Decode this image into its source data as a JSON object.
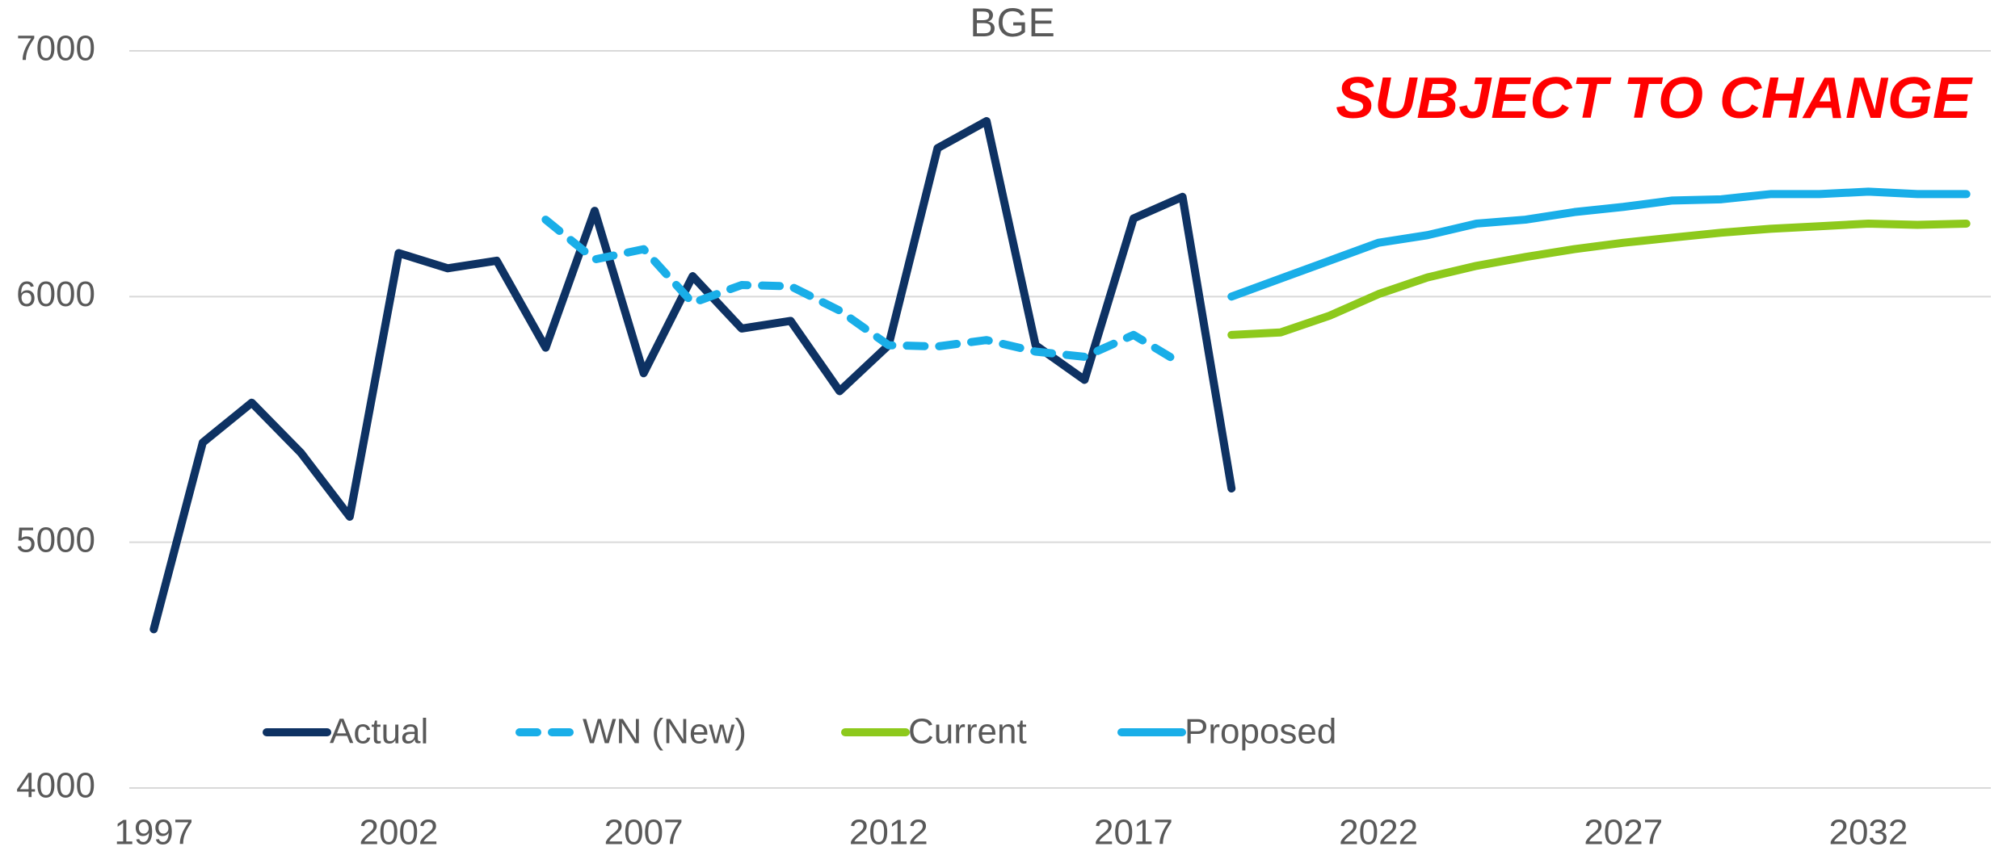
{
  "chart_data": {
    "type": "line",
    "title": "BGE",
    "annotation": "SUBJECT TO CHANGE",
    "annotation_color": "#ff0000",
    "x": [
      1997,
      1998,
      1999,
      2000,
      2001,
      2002,
      2003,
      2004,
      2005,
      2006,
      2007,
      2008,
      2009,
      2010,
      2011,
      2012,
      2013,
      2014,
      2015,
      2016,
      2017,
      2018,
      2019,
      2020,
      2021,
      2022,
      2023,
      2024,
      2025,
      2026,
      2027,
      2028,
      2029,
      2030,
      2031,
      2032,
      2033,
      2034
    ],
    "series": [
      {
        "name": "Actual",
        "color": "#0e3263",
        "dashed": false,
        "values": [
          4646,
          5406,
          5568,
          5365,
          5104,
          6177,
          6115,
          6146,
          5792,
          6349,
          5688,
          6083,
          5870,
          5901,
          5615,
          5802,
          6604,
          6714,
          5802,
          5661,
          6318,
          6406,
          5219,
          null,
          null,
          null,
          null,
          null,
          null,
          null,
          null,
          null,
          null,
          null,
          null,
          null,
          null,
          null
        ]
      },
      {
        "name": "WN (New)",
        "color": "#19aee8",
        "dashed": true,
        "values": [
          null,
          null,
          null,
          null,
          null,
          null,
          null,
          null,
          6313,
          6151,
          6193,
          5974,
          6047,
          6042,
          5943,
          5802,
          5797,
          5823,
          5776,
          5755,
          5844,
          5724,
          null,
          null,
          null,
          null,
          null,
          null,
          null,
          null,
          null,
          null,
          null,
          null,
          null,
          null,
          null,
          null
        ]
      },
      {
        "name": "Current",
        "color": "#8dc91c",
        "dashed": false,
        "values": [
          null,
          null,
          null,
          null,
          null,
          null,
          null,
          null,
          null,
          null,
          null,
          null,
          null,
          null,
          null,
          null,
          null,
          null,
          null,
          null,
          null,
          null,
          5844,
          5854,
          5922,
          6010,
          6078,
          6125,
          6161,
          6193,
          6219,
          6240,
          6260,
          6276,
          6286,
          6297,
          6292,
          6297
        ]
      },
      {
        "name": "Proposed",
        "color": "#19aee8",
        "dashed": false,
        "values": [
          null,
          null,
          null,
          null,
          null,
          null,
          null,
          null,
          null,
          null,
          null,
          null,
          null,
          null,
          null,
          null,
          null,
          null,
          null,
          null,
          null,
          null,
          6000,
          6073,
          6146,
          6219,
          6250,
          6297,
          6313,
          6344,
          6365,
          6391,
          6396,
          6417,
          6417,
          6427,
          6417,
          6417
        ]
      }
    ],
    "xlim": [
      1996.5,
      2034.5
    ],
    "xticks": [
      1997,
      2002,
      2007,
      2012,
      2017,
      2022,
      2027,
      2032
    ],
    "ylim": [
      4000,
      7000
    ],
    "yticks": [
      4000,
      5000,
      6000,
      7000
    ],
    "grid": true,
    "legend": "lower left"
  }
}
